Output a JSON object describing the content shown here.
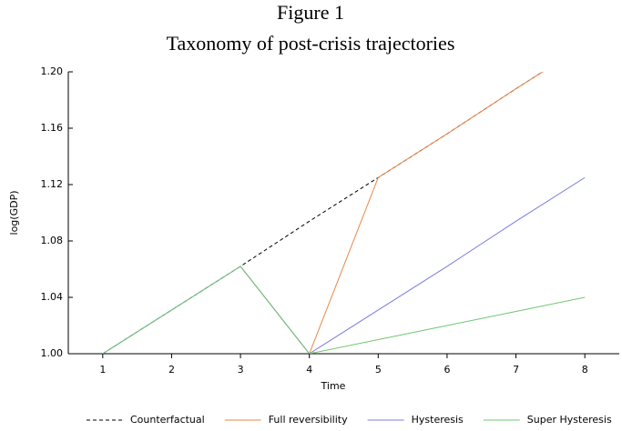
{
  "chart_data": {
    "type": "line",
    "title": "Figure 1",
    "subtitle": "Taxonomy of post-crisis trajectories",
    "x_label": "Time",
    "y_label": "log(GDP)",
    "x": [
      1,
      2,
      3,
      4,
      5,
      6,
      7,
      8
    ],
    "xlim": [
      0.5,
      8.5
    ],
    "xticks": [
      1,
      2,
      3,
      4,
      5,
      6,
      7,
      8
    ],
    "ylim": [
      1.0,
      1.2
    ],
    "yticks": [
      {
        "value": 1.0,
        "label": "1.00"
      },
      {
        "value": 1.04,
        "label": "1.04"
      },
      {
        "value": 1.08,
        "label": "1.08"
      },
      {
        "value": 1.12,
        "label": "1.12"
      },
      {
        "value": 1.16,
        "label": "1.16"
      },
      {
        "value": 1.2,
        "label": "1.20"
      }
    ],
    "legend": "bottom",
    "series": [
      {
        "name": "Counterfactual",
        "color": "#000000",
        "dashed": true,
        "values": [
          1.0,
          1.031,
          1.062,
          1.094,
          1.125,
          1.156,
          1.188,
          1.219
        ]
      },
      {
        "name": "Full reversibility",
        "color": "#e9874a",
        "values": [
          null,
          null,
          1.062,
          1.0,
          1.125,
          1.156,
          1.188,
          1.219
        ]
      },
      {
        "name": "Hysteresis",
        "color": "#7b7be0",
        "values": [
          1.0,
          1.031,
          1.062,
          1.0,
          1.031,
          1.062,
          1.094,
          1.125
        ]
      },
      {
        "name": "Super Hysteresis",
        "color": "#72c672",
        "values": [
          1.0,
          1.031,
          1.062,
          1.0,
          1.01,
          1.02,
          1.03,
          1.04
        ]
      }
    ]
  }
}
